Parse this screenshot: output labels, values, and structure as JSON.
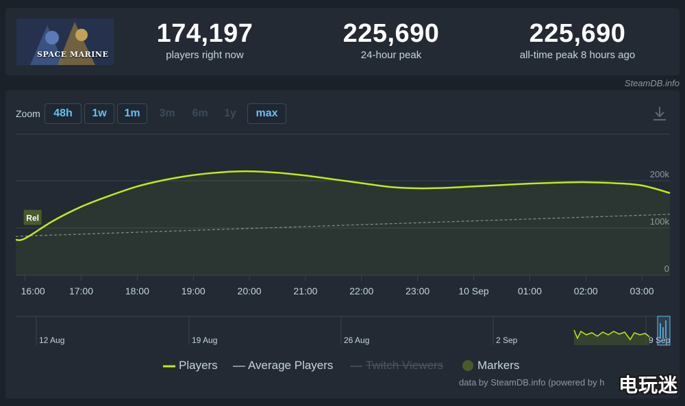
{
  "game": {
    "logo_text": "SPACE MARINE",
    "logo_icon": "game-cover-art"
  },
  "stats": [
    {
      "value": "174,197",
      "label": "players right now"
    },
    {
      "value": "225,690",
      "label": "24-hour peak"
    },
    {
      "value": "225,690",
      "label": "all-time peak 8 hours ago"
    }
  ],
  "credit_top": "SteamDB.info",
  "zoom": {
    "label": "Zoom",
    "buttons": [
      {
        "label": "48h",
        "enabled": true
      },
      {
        "label": "1w",
        "enabled": true
      },
      {
        "label": "1m",
        "enabled": true
      },
      {
        "label": "3m",
        "enabled": false
      },
      {
        "label": "6m",
        "enabled": false
      },
      {
        "label": "1y",
        "enabled": false
      },
      {
        "label": "max",
        "enabled": true
      }
    ]
  },
  "legend": {
    "players": "Players",
    "average": "Average Players",
    "twitch": "Twitch Viewers",
    "markers": "Markers"
  },
  "credit_bottom": "data by SteamDB.info (powered by h",
  "watermark": "电玩迷",
  "colors": {
    "players": "#beee11",
    "average": "#8a8f95",
    "grid": "#3a4450",
    "accent": "#66c0f4"
  },
  "chart_data": {
    "type": "line",
    "y_ticks": [
      "200k",
      "100k",
      "0"
    ],
    "ylim": [
      0,
      200000
    ],
    "x_tick_labels": [
      "16:00",
      "17:00",
      "18:00",
      "19:00",
      "20:00",
      "21:00",
      "22:00",
      "23:00",
      "10 Sep",
      "01:00",
      "02:00",
      "03:00"
    ],
    "x": [
      "15:50",
      "16:00",
      "16:30",
      "17:00",
      "17:30",
      "18:00",
      "18:30",
      "19:00",
      "19:30",
      "20:00",
      "20:30",
      "21:00",
      "21:30",
      "22:00",
      "22:30",
      "23:00",
      "23:30",
      "00:00",
      "00:30",
      "01:00",
      "01:30",
      "02:00",
      "02:30",
      "03:00",
      "03:30"
    ],
    "series": [
      {
        "name": "Players",
        "values": [
          75000,
          78000,
          115000,
          145000,
          168000,
          188000,
          202000,
          212000,
          218000,
          220000,
          217000,
          211000,
          203000,
          195000,
          187000,
          184000,
          185000,
          188000,
          191000,
          194000,
          196000,
          197000,
          195000,
          190000,
          174000
        ]
      },
      {
        "name": "Average Players",
        "values": [
          82000,
          83000,
          85000,
          87000,
          89000,
          91000,
          93000,
          95000,
          97000,
          99000,
          101000,
          103000,
          105000,
          107000,
          109000,
          111000,
          113000,
          115000,
          117000,
          119000,
          121000,
          123000,
          125000,
          127000,
          129000
        ]
      }
    ],
    "marker": {
      "label": "Rel",
      "x": "16:00"
    },
    "navigator": {
      "ticks": [
        "12 Aug",
        "19 Aug",
        "26 Aug",
        "2 Sep",
        "9 Sep"
      ]
    },
    "grid": true
  }
}
